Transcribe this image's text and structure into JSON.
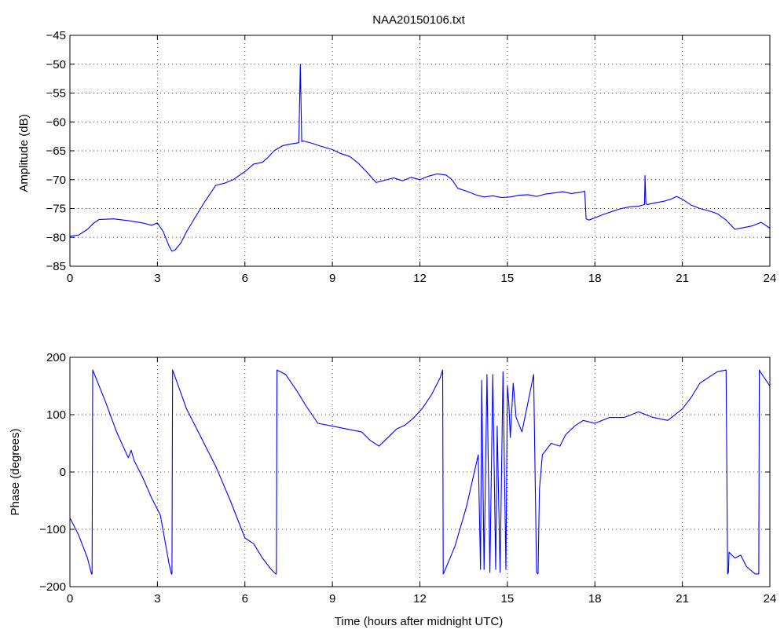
{
  "chart_data": [
    {
      "type": "line",
      "title": "NAA20150106.txt",
      "xlabel": "",
      "ylabel": "Amplitude (dB)",
      "xlim": [
        0,
        24
      ],
      "ylim": [
        -85,
        -45
      ],
      "xticks": [
        0,
        3,
        6,
        9,
        12,
        15,
        18,
        21,
        24
      ],
      "yticks": [
        -45,
        -50,
        -55,
        -60,
        -65,
        -70,
        -75,
        -80,
        -85
      ],
      "xtick_labels": [
        "0",
        "3",
        "6",
        "9",
        "12",
        "15",
        "18",
        "21",
        "24"
      ],
      "ytick_labels": [
        "−45",
        "−50",
        "−55",
        "−60",
        "−65",
        "−70",
        "−75",
        "−80",
        "−85"
      ],
      "grid": true,
      "color": "#0000ff",
      "series": [
        {
          "name": "",
          "x": [
            0,
            0.3,
            0.6,
            0.8,
            1.0,
            1.5,
            2.0,
            2.5,
            2.8,
            3.0,
            3.2,
            3.4,
            3.5,
            3.6,
            3.8,
            4.0,
            4.3,
            4.6,
            4.8,
            5.0,
            5.3,
            5.6,
            5.8,
            6.0,
            6.3,
            6.6,
            6.8,
            7.0,
            7.3,
            7.6,
            7.85,
            7.9,
            7.95,
            8.0,
            8.3,
            8.6,
            9.0,
            9.3,
            9.6,
            9.9,
            10.2,
            10.5,
            10.8,
            11.1,
            11.4,
            11.7,
            12.0,
            12.3,
            12.6,
            12.9,
            13.1,
            13.3,
            13.6,
            13.9,
            14.2,
            14.5,
            14.8,
            15.1,
            15.4,
            15.7,
            16.0,
            16.3,
            16.6,
            16.9,
            17.2,
            17.5,
            17.65,
            17.7,
            17.8,
            18.0,
            18.3,
            18.6,
            18.9,
            19.2,
            19.5,
            19.7,
            19.72,
            19.75,
            19.8,
            20.1,
            20.4,
            20.6,
            20.8,
            21.0,
            21.3,
            21.6,
            21.9,
            22.2,
            22.5,
            22.8,
            23.1,
            23.4,
            23.7,
            24.0
          ],
          "y": [
            -79.8,
            -79.6,
            -78.6,
            -77.6,
            -76.9,
            -76.8,
            -77.1,
            -77.5,
            -77.9,
            -77.5,
            -79.0,
            -81.5,
            -82.4,
            -82.2,
            -81.0,
            -79.0,
            -76.5,
            -74.0,
            -72.5,
            -71.0,
            -70.6,
            -70.0,
            -69.3,
            -68.6,
            -67.3,
            -67.0,
            -66.1,
            -65.0,
            -64.1,
            -63.8,
            -63.6,
            -50.0,
            -63.4,
            -63.3,
            -63.7,
            -64.2,
            -64.8,
            -65.5,
            -66.0,
            -67.2,
            -68.8,
            -70.5,
            -70.1,
            -69.7,
            -70.2,
            -69.6,
            -70.0,
            -69.4,
            -69.0,
            -69.2,
            -70.0,
            -71.5,
            -72.0,
            -72.6,
            -73.0,
            -72.8,
            -73.1,
            -73.0,
            -72.7,
            -72.6,
            -72.9,
            -72.5,
            -72.3,
            -72.1,
            -72.4,
            -72.2,
            -72.0,
            -76.8,
            -77.0,
            -76.6,
            -76.0,
            -75.5,
            -75.0,
            -74.7,
            -74.6,
            -74.3,
            -69.3,
            -74.2,
            -74.3,
            -74.0,
            -73.7,
            -73.4,
            -72.9,
            -73.4,
            -74.4,
            -75.0,
            -75.4,
            -75.9,
            -77.0,
            -78.6,
            -78.3,
            -78.0,
            -77.4,
            -78.4
          ]
        }
      ]
    },
    {
      "type": "line",
      "title": "",
      "xlabel": "Time (hours after midnight UTC)",
      "ylabel": "Phase (degrees)",
      "xlim": [
        0,
        24
      ],
      "ylim": [
        -200,
        200
      ],
      "xticks": [
        0,
        3,
        6,
        9,
        12,
        15,
        18,
        21,
        24
      ],
      "yticks": [
        200,
        100,
        0,
        -100,
        -200
      ],
      "xtick_labels": [
        "0",
        "3",
        "6",
        "9",
        "12",
        "15",
        "18",
        "21",
        "24"
      ],
      "ytick_labels": [
        "200",
        "100",
        "0",
        "−100",
        "−200"
      ],
      "grid": true,
      "color": "#0000ff",
      "series": [
        {
          "name": "",
          "x": [
            0,
            0.3,
            0.6,
            0.74,
            0.76,
            0.78,
            1.2,
            1.6,
            2.0,
            2.1,
            2.2,
            2.5,
            2.8,
            3.1,
            3.4,
            3.48,
            3.5,
            3.52,
            4.0,
            4.5,
            5.0,
            5.5,
            6.0,
            6.3,
            6.6,
            6.9,
            7.06,
            7.08,
            7.1,
            7.4,
            7.8,
            8.1,
            8.5,
            9.0,
            9.5,
            10.0,
            10.3,
            10.6,
            10.9,
            11.2,
            11.5,
            11.8,
            12.1,
            12.4,
            12.7,
            12.78,
            12.8,
            12.83,
            13.2,
            13.6,
            14.0,
            14.08,
            14.12,
            14.2,
            14.3,
            14.4,
            14.5,
            14.6,
            14.65,
            14.75,
            14.85,
            14.95,
            15.0,
            15.05,
            15.1,
            15.2,
            15.3,
            15.5,
            15.7,
            15.9,
            16.0,
            16.05,
            16.1,
            16.2,
            16.5,
            16.8,
            17.0,
            17.3,
            17.6,
            18.0,
            18.5,
            19.0,
            19.5,
            20.0,
            20.5,
            21.0,
            21.3,
            21.6,
            21.9,
            22.2,
            22.5,
            22.55,
            22.58,
            22.6,
            22.8,
            23.0,
            23.2,
            23.5,
            23.62,
            23.64,
            23.67,
            24.0
          ],
          "y": [
            -80,
            -110,
            -150,
            -178,
            -178,
            178,
            125,
            70,
            25,
            38,
            20,
            -10,
            -45,
            -75,
            -160,
            -178,
            -178,
            178,
            110,
            60,
            10,
            -50,
            -115,
            -125,
            -150,
            -170,
            -178,
            -178,
            178,
            170,
            140,
            115,
            85,
            80,
            75,
            70,
            55,
            45,
            60,
            75,
            82,
            95,
            112,
            135,
            165,
            178,
            -178,
            -175,
            -130,
            -60,
            30,
            -170,
            160,
            -170,
            170,
            -175,
            170,
            -170,
            80,
            -175,
            175,
            -170,
            150,
            120,
            60,
            155,
            95,
            70,
            120,
            170,
            -175,
            -178,
            -30,
            30,
            50,
            45,
            65,
            80,
            90,
            85,
            95,
            95,
            105,
            95,
            90,
            110,
            130,
            155,
            165,
            175,
            178,
            -178,
            -175,
            -140,
            -150,
            -145,
            -165,
            -178,
            -178,
            178,
            175,
            150
          ]
        }
      ]
    }
  ]
}
